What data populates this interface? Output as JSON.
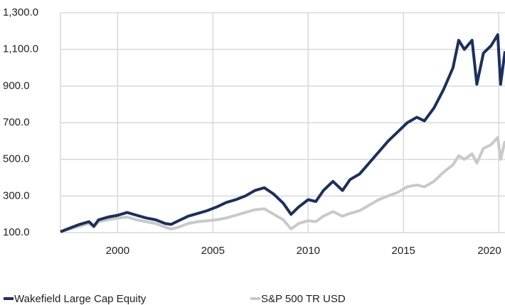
{
  "chart_data": {
    "type": "line",
    "x": [
      1997,
      1997.5,
      1998,
      1998.5,
      1998.75,
      1999,
      1999.5,
      2000,
      2000.5,
      2001,
      2001.5,
      2002,
      2002.5,
      2002.8,
      2003.2,
      2003.7,
      2004.2,
      2004.7,
      2005.2,
      2005.7,
      2006.2,
      2006.7,
      2007.2,
      2007.7,
      2008.2,
      2008.7,
      2009.1,
      2009.5,
      2010,
      2010.4,
      2010.8,
      2011.3,
      2011.8,
      2012.2,
      2012.7,
      2013.2,
      2013.7,
      2014.2,
      2014.7,
      2015.2,
      2015.7,
      2016.1,
      2016.6,
      2017.1,
      2017.6,
      2017.9,
      2018.2,
      2018.6,
      2018.85,
      2019.2,
      2019.6,
      2019.95,
      2020.1,
      2020.33
    ],
    "series": [
      {
        "name": "Wakefield Large Cap Equity",
        "color": "#1c2f5c",
        "values": [
          105,
          125,
          145,
          160,
          135,
          170,
          185,
          195,
          210,
          195,
          180,
          170,
          150,
          145,
          165,
          190,
          205,
          220,
          240,
          265,
          280,
          300,
          330,
          345,
          310,
          260,
          200,
          240,
          280,
          270,
          330,
          380,
          330,
          390,
          420,
          480,
          540,
          600,
          650,
          700,
          730,
          710,
          780,
          880,
          1000,
          1150,
          1100,
          1150,
          910,
          1080,
          1120,
          1180,
          910,
          1090
        ]
      },
      {
        "name": "S&P 500 TR USD",
        "color": "#c9c9c9",
        "values": [
          105,
          120,
          135,
          150,
          130,
          160,
          170,
          180,
          185,
          170,
          160,
          150,
          130,
          120,
          130,
          150,
          160,
          165,
          170,
          180,
          195,
          210,
          225,
          230,
          200,
          170,
          120,
          150,
          165,
          160,
          190,
          215,
          190,
          205,
          220,
          250,
          280,
          300,
          320,
          350,
          360,
          350,
          380,
          430,
          470,
          520,
          500,
          530,
          480,
          560,
          580,
          620,
          500,
          600
        ]
      }
    ],
    "xlim": [
      1997,
      2020.33
    ],
    "xticks": [
      2000,
      2005,
      2010,
      2015,
      2020
    ],
    "ylim": [
      100,
      1300
    ],
    "yticks": [
      {
        "value": 100,
        "label": "100.0"
      },
      {
        "value": 300,
        "label": "300.0"
      },
      {
        "value": 500,
        "label": "500.0"
      },
      {
        "value": 700,
        "label": "700.0"
      },
      {
        "value": 900,
        "label": "900.0"
      },
      {
        "value": 1100,
        "label": "1,100.0"
      },
      {
        "value": 1300,
        "label": "1,300.0"
      }
    ],
    "grid": true
  }
}
